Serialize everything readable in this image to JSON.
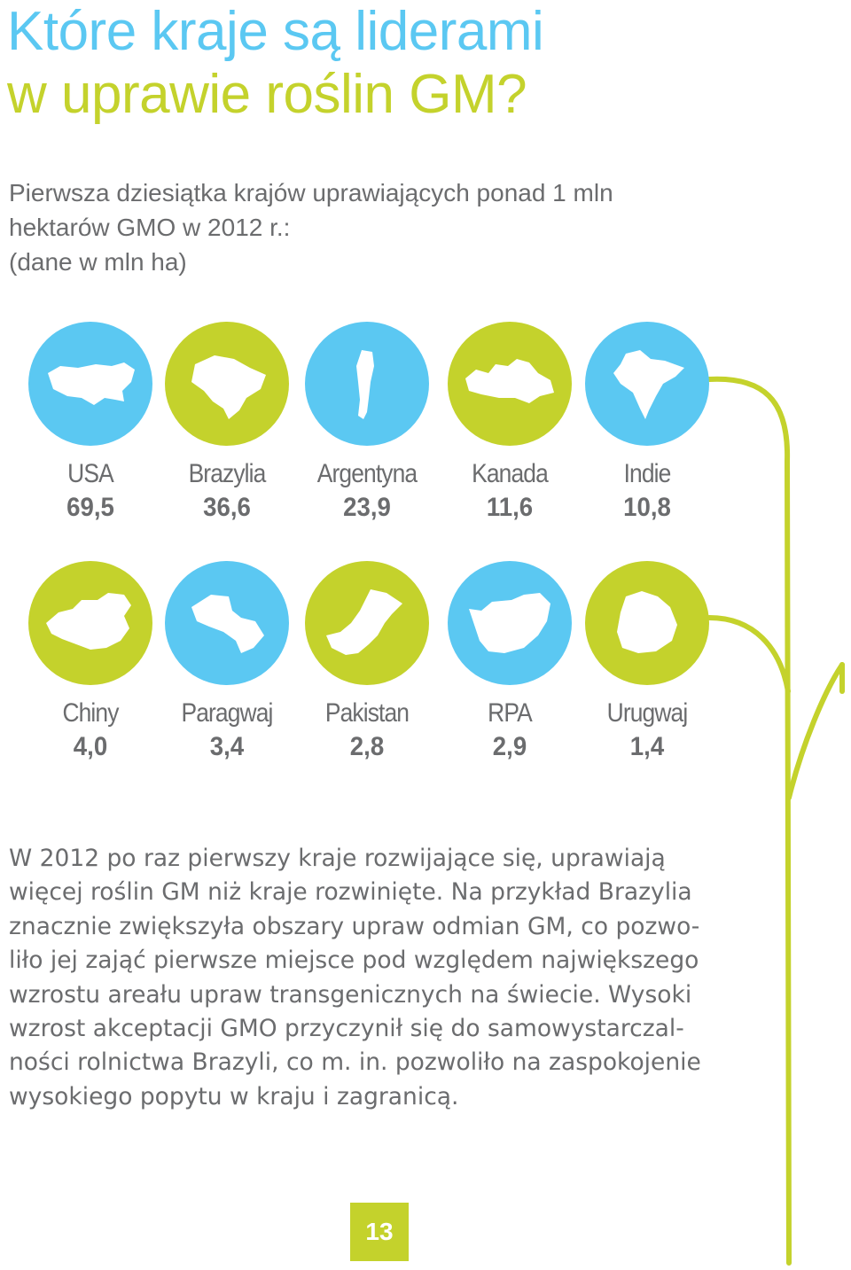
{
  "title": {
    "line1": "Które kraje są liderami",
    "line2": "w uprawie roślin GM?"
  },
  "subtitle": {
    "line1": "Pierwsza dziesiątka krajów uprawiających ponad 1 mln",
    "line2": "hektarów GMO w 2012 r.:",
    "line3": "(dane w mln ha)"
  },
  "colors": {
    "blue": "#5bc8f2",
    "green": "#c4d22c",
    "text": "#6b6c6e"
  },
  "chart_data": {
    "type": "table",
    "categories": [
      "USA",
      "Brazylia",
      "Argentyna",
      "Kanada",
      "Indie",
      "Chiny",
      "Paragwaj",
      "Pakistan",
      "RPA",
      "Urugwaj"
    ],
    "values": [
      69.5,
      36.6,
      23.9,
      11.6,
      10.8,
      4.0,
      3.4,
      2.8,
      2.9,
      1.4
    ]
  },
  "countries": [
    {
      "name": "USA",
      "value": "69,5",
      "color": "blue",
      "icon": "usa-map-icon"
    },
    {
      "name": "Brazylia",
      "value": "36,6",
      "color": "green",
      "icon": "brazil-map-icon"
    },
    {
      "name": "Argentyna",
      "value": "23,9",
      "color": "blue",
      "icon": "argentina-map-icon"
    },
    {
      "name": "Kanada",
      "value": "11,6",
      "color": "green",
      "icon": "canada-map-icon"
    },
    {
      "name": "Indie",
      "value": "10,8",
      "color": "blue",
      "icon": "india-map-icon"
    },
    {
      "name": "Chiny",
      "value": "4,0",
      "color": "green",
      "icon": "china-map-icon"
    },
    {
      "name": "Paragwaj",
      "value": "3,4",
      "color": "blue",
      "icon": "paraguay-map-icon"
    },
    {
      "name": "Pakistan",
      "value": "2,8",
      "color": "green",
      "icon": "pakistan-map-icon"
    },
    {
      "name": "RPA",
      "value": "2,9",
      "color": "blue",
      "icon": "south-africa-map-icon"
    },
    {
      "name": "Urugwaj",
      "value": "1,4",
      "color": "green",
      "icon": "uruguay-map-icon"
    }
  ],
  "body": {
    "lines": [
      "W 2012 po raz pierwszy kraje rozwijające się, uprawiają",
      "więcej roślin GM niż kraje rozwinięte. Na przykład Brazylia",
      "znacznie zwiększyła obszary upraw odmian GM, co pozwo-",
      "liło jej zająć pierwsze miejsce pod względem największego",
      "wzrostu areału upraw transgenicznych na świecie. Wysoki",
      "wzrost akceptacji GMO przyczynił się do samowystarczal-",
      "ności rolnictwa Brazyli, co m. in. pozwoliło na zaspokojenie",
      "wysokiego popytu w kraju i zagranicą."
    ]
  },
  "page_number": "13"
}
